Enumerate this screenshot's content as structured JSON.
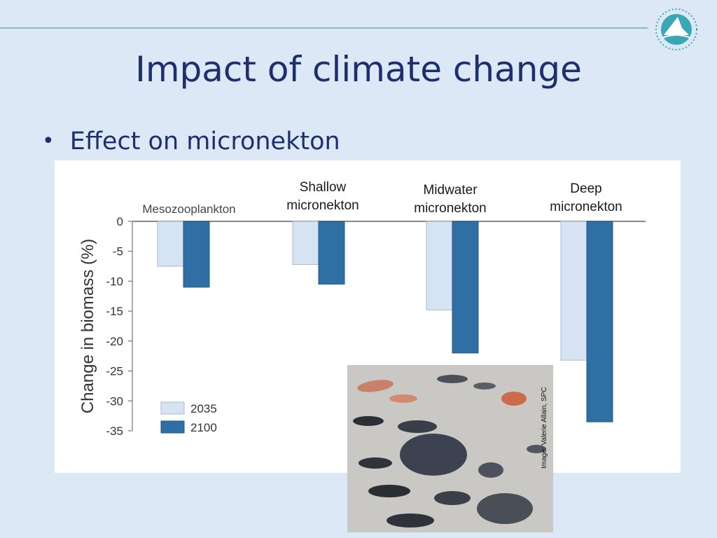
{
  "slide": {
    "title": "Impact of climate change",
    "bullet": "Effect on micronekton",
    "image_credit": "Image: Valerie Allain, SPC"
  },
  "colors": {
    "background": "#dde8f7",
    "title": "#1f2e6e",
    "series_2035": "#d6e3f2",
    "series_2100": "#2f6fa3"
  },
  "chart_data": {
    "type": "bar",
    "categories": [
      "Mesozooplankton",
      "Shallow micronekton",
      "Midwater micronekton",
      "Deep micronekton"
    ],
    "category_labels": [
      [
        "Mesozooplankton"
      ],
      [
        "Shallow",
        "micronekton"
      ],
      [
        "Midwater",
        "micronekton"
      ],
      [
        "Deep",
        "micronekton"
      ]
    ],
    "series": [
      {
        "name": "2035",
        "values": [
          -7.5,
          -7.2,
          -14.8,
          -23.2
        ]
      },
      {
        "name": "2100",
        "values": [
          -11.0,
          -10.5,
          -22.0,
          -33.5
        ]
      }
    ],
    "ylabel": "Change in biomass (%)",
    "yticks": [
      0,
      -5,
      -10,
      -15,
      -20,
      -25,
      -30,
      -35
    ],
    "ylim": [
      -35,
      0
    ],
    "grid": false,
    "legend_position": "bottom-left"
  }
}
